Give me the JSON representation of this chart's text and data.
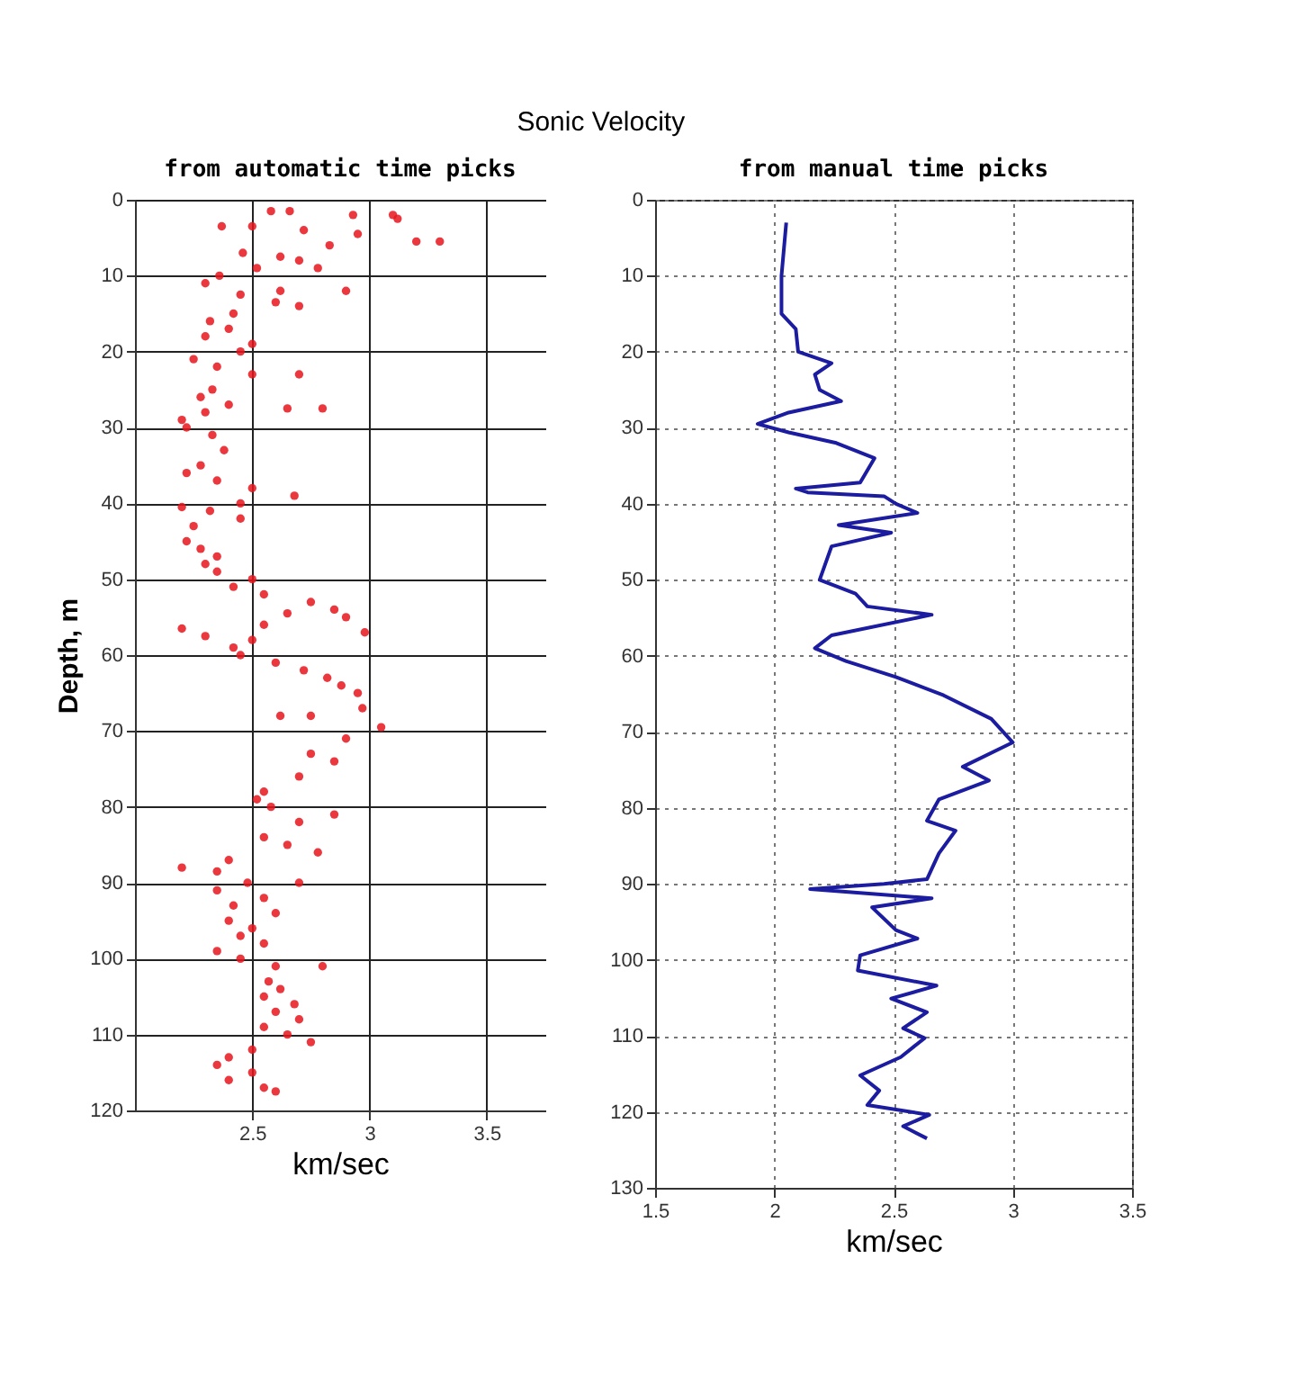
{
  "chart_data": [
    {
      "type": "scatter",
      "title": "Sonic Velocity",
      "subtitle": "from automatic time picks",
      "xlabel": "km/sec",
      "ylabel": "Depth, m",
      "marker": "circle",
      "grid": true,
      "xlim": [
        2,
        3.75
      ],
      "xticks": [
        2.5,
        3,
        3.5
      ],
      "ylim": [
        120,
        0
      ],
      "yticks": [
        0,
        10,
        20,
        30,
        40,
        50,
        60,
        70,
        80,
        90,
        100,
        110,
        120
      ],
      "series": [
        {
          "color": "#e8141c",
          "x": [
            2.58,
            2.66,
            2.93,
            3.1,
            3.12,
            2.37,
            2.5,
            2.72,
            2.95,
            3.3,
            3.2,
            2.83,
            2.46,
            2.62,
            2.7,
            2.52,
            2.78,
            2.36,
            2.3,
            2.62,
            2.9,
            2.45,
            2.6,
            2.7,
            2.42,
            2.32,
            2.4,
            2.3,
            2.5,
            2.45,
            2.25,
            2.35,
            2.5,
            2.7,
            2.33,
            2.28,
            2.4,
            2.65,
            2.8,
            2.3,
            2.2,
            2.22,
            2.33,
            2.38,
            2.28,
            2.22,
            2.35,
            2.5,
            2.68,
            2.45,
            2.2,
            2.32,
            2.45,
            2.25,
            2.22,
            2.28,
            2.35,
            2.3,
            2.35,
            2.5,
            2.42,
            2.55,
            2.75,
            2.85,
            2.65,
            2.9,
            2.55,
            2.98,
            2.2,
            2.3,
            2.5,
            2.42,
            2.45,
            2.6,
            2.72,
            2.82,
            2.88,
            2.95,
            2.97,
            2.62,
            2.75,
            3.05,
            2.9,
            2.75,
            2.85,
            2.7,
            2.55,
            2.52,
            2.58,
            2.85,
            2.7,
            2.55,
            2.65,
            2.78,
            2.4,
            2.2,
            2.35,
            2.48,
            2.7,
            2.35,
            2.55,
            2.42,
            2.6,
            2.4,
            2.5,
            2.45,
            2.55,
            2.35,
            2.45,
            2.6,
            2.8,
            2.57,
            2.62,
            2.55,
            2.68,
            2.6,
            2.7,
            2.55,
            2.65,
            2.75,
            2.5,
            2.4,
            2.35,
            2.5,
            2.4,
            2.55,
            2.6
          ],
          "values": [
            1.5,
            1.5,
            2,
            2,
            2.5,
            3.5,
            3.5,
            4,
            4.5,
            5.5,
            5.5,
            6,
            7,
            7.5,
            8,
            9,
            9,
            10,
            11,
            12,
            12,
            12.5,
            13.5,
            14,
            15,
            16,
            17,
            18,
            19,
            20,
            21,
            22,
            23,
            23,
            25,
            26,
            27,
            27.5,
            27.5,
            28,
            29,
            30,
            31,
            33,
            35,
            36,
            37,
            38,
            39,
            40,
            40.5,
            41,
            42,
            43,
            45,
            46,
            47,
            48,
            49,
            50,
            51,
            52,
            53,
            54,
            54.5,
            55,
            56,
            57,
            56.5,
            57.5,
            58,
            59,
            60,
            61,
            62,
            63,
            64,
            65,
            67,
            68,
            68,
            69.5,
            71,
            73,
            74,
            76,
            78,
            79,
            80,
            81,
            82,
            84,
            85,
            86,
            87,
            88,
            88.5,
            90,
            90,
            91,
            92,
            93,
            94,
            95,
            96,
            97,
            98,
            99,
            100,
            101,
            101,
            103,
            104,
            105,
            106,
            107,
            108,
            109,
            110,
            111,
            112,
            113,
            114,
            115,
            116,
            117,
            117.5
          ]
        }
      ]
    },
    {
      "type": "line",
      "subtitle": "from manual time picks",
      "xlabel": "km/sec",
      "grid": true,
      "xlim": [
        1.5,
        3.5
      ],
      "xticks": [
        1.5,
        2,
        2.5,
        3,
        3.5
      ],
      "ylim": [
        130,
        0
      ],
      "yticks": [
        0,
        10,
        20,
        30,
        40,
        50,
        60,
        70,
        80,
        90,
        100,
        110,
        120,
        130
      ],
      "series": [
        {
          "color": "#1c1ca0",
          "x": [
            2.05,
            2.03,
            2.03,
            2.09,
            2.1,
            2.24,
            2.17,
            2.19,
            2.28,
            2.06,
            1.93,
            2.06,
            2.26,
            2.42,
            2.36,
            2.09,
            2.14,
            2.46,
            2.51,
            2.6,
            2.27,
            2.49,
            2.24,
            2.19,
            2.34,
            2.39,
            2.66,
            2.24,
            2.17,
            2.3,
            2.51,
            2.71,
            2.91,
            3.0,
            2.79,
            2.9,
            2.69,
            2.64,
            2.76,
            2.69,
            2.64,
            2.46,
            2.15,
            2.66,
            2.41,
            2.51,
            2.6,
            2.36,
            2.35,
            2.68,
            2.49,
            2.64,
            2.54,
            2.63,
            2.53,
            2.36,
            2.44,
            2.39,
            2.65,
            2.54,
            2.64
          ],
          "values": [
            3,
            10,
            15,
            17,
            20,
            21.5,
            23,
            25,
            26.5,
            28,
            29.5,
            30.6,
            32,
            34,
            37.2,
            38,
            38.5,
            39,
            40,
            41.2,
            42.8,
            43.8,
            45.6,
            50,
            51.8,
            53.5,
            54.6,
            57.3,
            59,
            60.7,
            62.8,
            65.2,
            68.3,
            71.4,
            74.6,
            76.4,
            78.9,
            81.7,
            83,
            86,
            89.4,
            90,
            90.7,
            91.9,
            93.1,
            96.1,
            97.2,
            99.4,
            101.4,
            103.4,
            105.1,
            106.9,
            109,
            110.3,
            112.8,
            115.2,
            117.2,
            119.1,
            120.4,
            121.9,
            123.5
          ]
        }
      ]
    }
  ]
}
